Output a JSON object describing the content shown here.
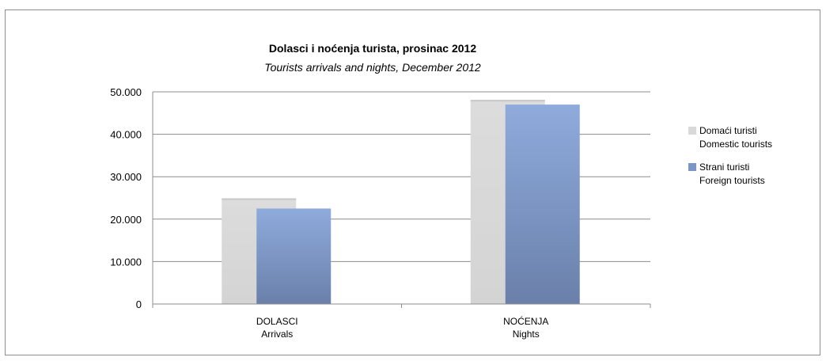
{
  "chart_data": {
    "type": "bar",
    "title": "Dolasci i noćenja turista, prosinac 2012",
    "subtitle": "Tourists arrivals and nights, December 2012",
    "categories": [
      [
        "DOLASCI",
        "Arrivals"
      ],
      [
        "NOĆENJA",
        "Nights"
      ]
    ],
    "series": [
      {
        "name": [
          "Domaći turisti",
          "Domestic tourists"
        ],
        "values": [
          24900,
          48100
        ],
        "color": "#d9d9d9"
      },
      {
        "name": [
          "Strani turisti",
          "Foreign tourists"
        ],
        "values": [
          22500,
          47000
        ],
        "color": "#7b96c4"
      }
    ],
    "ylim": [
      0,
      50000
    ],
    "yticks": [
      "0",
      "10.000",
      "20.000",
      "30.000",
      "40.000",
      "50.000"
    ],
    "ytick_values": [
      0,
      10000,
      20000,
      30000,
      40000,
      50000
    ],
    "grid": true,
    "legend_position": "right"
  }
}
